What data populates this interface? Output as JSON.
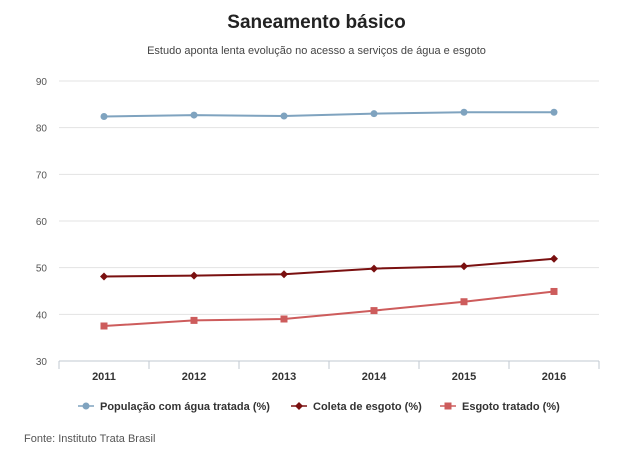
{
  "chart_data": {
    "type": "line",
    "title": "Saneamento básico",
    "subtitle": "Estudo aponta lenta evolução no acesso a serviços de água e esgoto",
    "categories": [
      "2011",
      "2012",
      "2013",
      "2014",
      "2015",
      "2016"
    ],
    "ylim": [
      30,
      90
    ],
    "yticks": [
      30,
      40,
      50,
      60,
      70,
      80,
      90
    ],
    "grid": true,
    "legend_position": "bottom",
    "series": [
      {
        "name": "População com água tratada (%)",
        "values": [
          82.4,
          82.7,
          82.5,
          83.0,
          83.3,
          83.3
        ],
        "color": "#7fa3bf",
        "marker": "circle"
      },
      {
        "name": "Coleta de esgoto (%)",
        "values": [
          48.1,
          48.3,
          48.6,
          49.8,
          50.3,
          51.9
        ],
        "color": "#7a1010",
        "marker": "diamond"
      },
      {
        "name": "Esgoto tratado (%)",
        "values": [
          37.5,
          38.7,
          39.0,
          40.8,
          42.7,
          44.9
        ],
        "color": "#cd5c5c",
        "marker": "square"
      }
    ],
    "source": "Fonte: Instituto Trata Brasil"
  }
}
